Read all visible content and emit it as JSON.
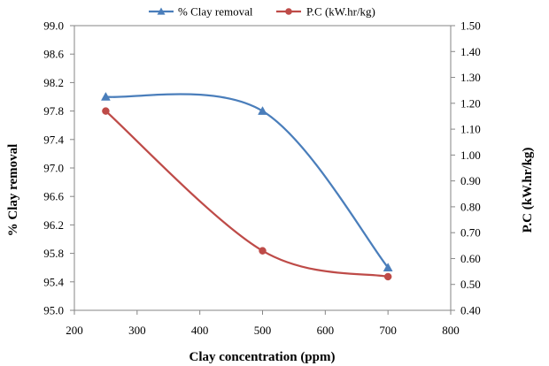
{
  "chart_data": {
    "type": "line",
    "title": "",
    "xlabel": "Clay concentration (ppm)",
    "ylabel_left": "% Clay removal",
    "ylabel_right": "P.C (kW.hr/kg)",
    "xlim": [
      200,
      800
    ],
    "x_ticks": [
      200,
      300,
      400,
      500,
      600,
      700,
      800
    ],
    "x_tick_labels": [
      "200",
      "300",
      "400",
      "500",
      "600",
      "700",
      "800"
    ],
    "ylim_left": [
      95.0,
      99.0
    ],
    "y_left_tick_labels": [
      "95.0",
      "95.4",
      "95.8",
      "96.2",
      "96.6",
      "97.0",
      "97.4",
      "97.8",
      "98.2",
      "98.6",
      "99.0"
    ],
    "ylim_right": [
      0.4,
      1.5
    ],
    "y_right_tick_labels": [
      "0.40",
      "0.50",
      "0.60",
      "0.70",
      "0.80",
      "0.90",
      "1.00",
      "1.10",
      "1.20",
      "1.30",
      "1.40",
      "1.50"
    ],
    "grid": false,
    "legend_position": "top",
    "series": [
      {
        "name": "% Clay removal",
        "axis": "left",
        "marker": "triangle",
        "color": "#4A7EBB",
        "x": [
          250,
          500,
          700
        ],
        "y": [
          98.0,
          97.8,
          95.6
        ]
      },
      {
        "name": "P.C (kW.hr/kg)",
        "axis": "right",
        "marker": "circle",
        "color": "#BE4B48",
        "x": [
          250,
          500,
          700
        ],
        "y": [
          1.17,
          0.63,
          0.53
        ]
      }
    ]
  }
}
